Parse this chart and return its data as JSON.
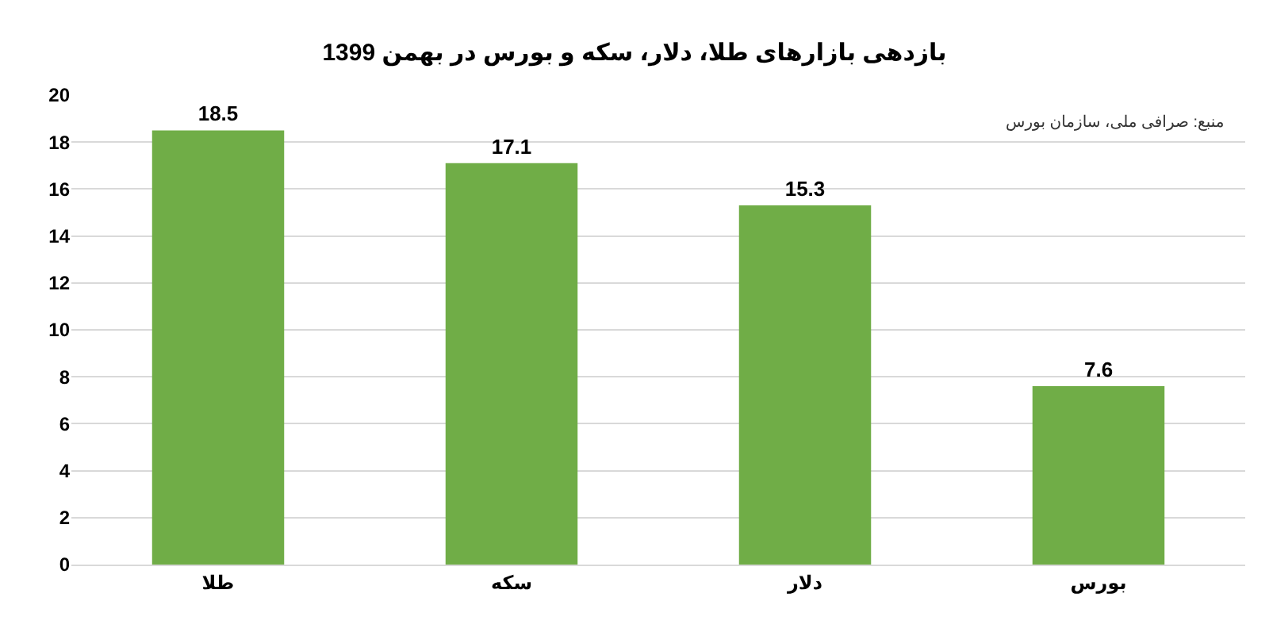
{
  "chart_data": {
    "type": "bar",
    "title": "بازدهی بازارهای طلا، دلار، سکه و بورس در بهمن 1399",
    "annotations": [
      "منبع: صرافی ملی، سازمان بورس"
    ],
    "categories": [
      "طلا",
      "سکه",
      "دلار",
      "بورس"
    ],
    "values": [
      18.5,
      17.1,
      15.3,
      7.6
    ],
    "color": "#70ad47",
    "ylim": [
      0,
      20
    ],
    "yticks": [
      0,
      2,
      4,
      6,
      8,
      10,
      12,
      14,
      16,
      18,
      20
    ],
    "grid": "y",
    "data_labels": true,
    "legend": false
  }
}
